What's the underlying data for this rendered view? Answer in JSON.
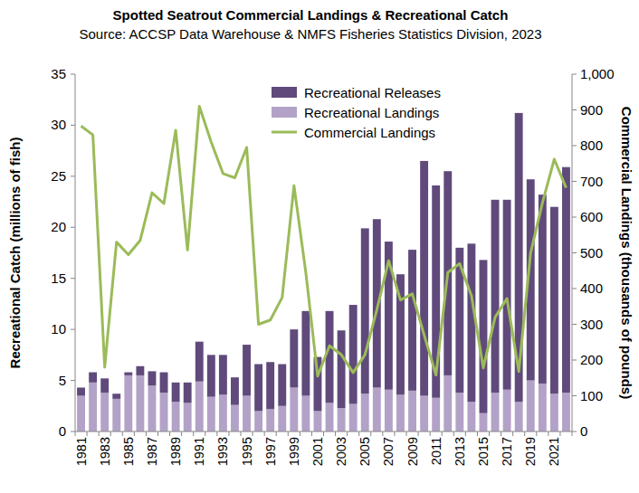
{
  "chart_data": {
    "type": "bar",
    "title": "Spotted Seatrout Commercial Landings & Recreational Catch",
    "subtitle": "Source: ACCSP Data Warehouse & NMFS Fisheries Statistics Division, 2023",
    "y_label": "Recreational Catch (millions of fish)",
    "y2_label": "Commercial Landings (thousands of pounds)",
    "categories": [
      "1981",
      null,
      "1983",
      null,
      "1985",
      null,
      "1987",
      null,
      "1989",
      null,
      "1991",
      null,
      "1993",
      null,
      "1995",
      null,
      "1997",
      null,
      "1999",
      null,
      "2001",
      null,
      "2003",
      null,
      "2005",
      null,
      "2007",
      null,
      "2009",
      null,
      "2011",
      null,
      "2013",
      null,
      "2015",
      null,
      "2017",
      null,
      "2019",
      null,
      "2021",
      null
    ],
    "stacked": true,
    "grid": false,
    "legend": "top",
    "ylim": [
      0,
      35
    ],
    "yticks": [
      0,
      5,
      10,
      15,
      20,
      25,
      30,
      35
    ],
    "y2lim": [
      0,
      1000
    ],
    "y2ticks": [
      0,
      100,
      200,
      300,
      400,
      500,
      600,
      700,
      800,
      900,
      {
        "value": 1000,
        "label": "1,000"
      }
    ],
    "series": [
      {
        "name": "Recreational Landings",
        "type": "bar",
        "color": "#b3a2c7",
        "values": [
          3.5,
          4.8,
          3.8,
          3.2,
          5.5,
          5.5,
          4.5,
          3.8,
          2.9,
          2.8,
          4.9,
          3.4,
          3.6,
          2.6,
          3.5,
          2.0,
          2.2,
          2.5,
          4.3,
          3.5,
          2.0,
          2.8,
          2.3,
          2.7,
          3.7,
          4.3,
          4.1,
          3.6,
          4.0,
          3.5,
          3.3,
          5.5,
          3.8,
          2.9,
          1.8,
          3.8,
          4.1,
          2.9,
          5.0,
          4.7,
          3.7,
          3.8
        ]
      },
      {
        "name": "Recreational Releases",
        "type": "bar",
        "color": "#604a7b",
        "values": [
          0.8,
          1.0,
          1.4,
          0.5,
          0.3,
          0.9,
          1.4,
          2.0,
          1.9,
          2.0,
          3.9,
          4.1,
          3.9,
          2.7,
          5.0,
          4.6,
          4.6,
          4.1,
          5.7,
          8.3,
          5.3,
          9.0,
          7.6,
          9.7,
          16.2,
          16.5,
          14.5,
          11.8,
          13.8,
          23.0,
          20.8,
          20.0,
          14.2,
          15.5,
          15.0,
          18.9,
          18.6,
          28.3,
          19.7,
          18.5,
          18.3,
          22.1
        ]
      },
      {
        "name": "Commercial Landings",
        "type": "line",
        "axis": "y2",
        "color": "#9bbb59",
        "values": [
          855,
          830,
          180,
          530,
          495,
          535,
          668,
          638,
          843,
          508,
          910,
          810,
          722,
          710,
          795,
          300,
          312,
          375,
          688,
          445,
          155,
          240,
          215,
          165,
          215,
          340,
          478,
          368,
          385,
          270,
          158,
          445,
          470,
          380,
          178,
          320,
          372,
          168,
          500,
          640,
          762,
          682
        ]
      }
    ]
  }
}
